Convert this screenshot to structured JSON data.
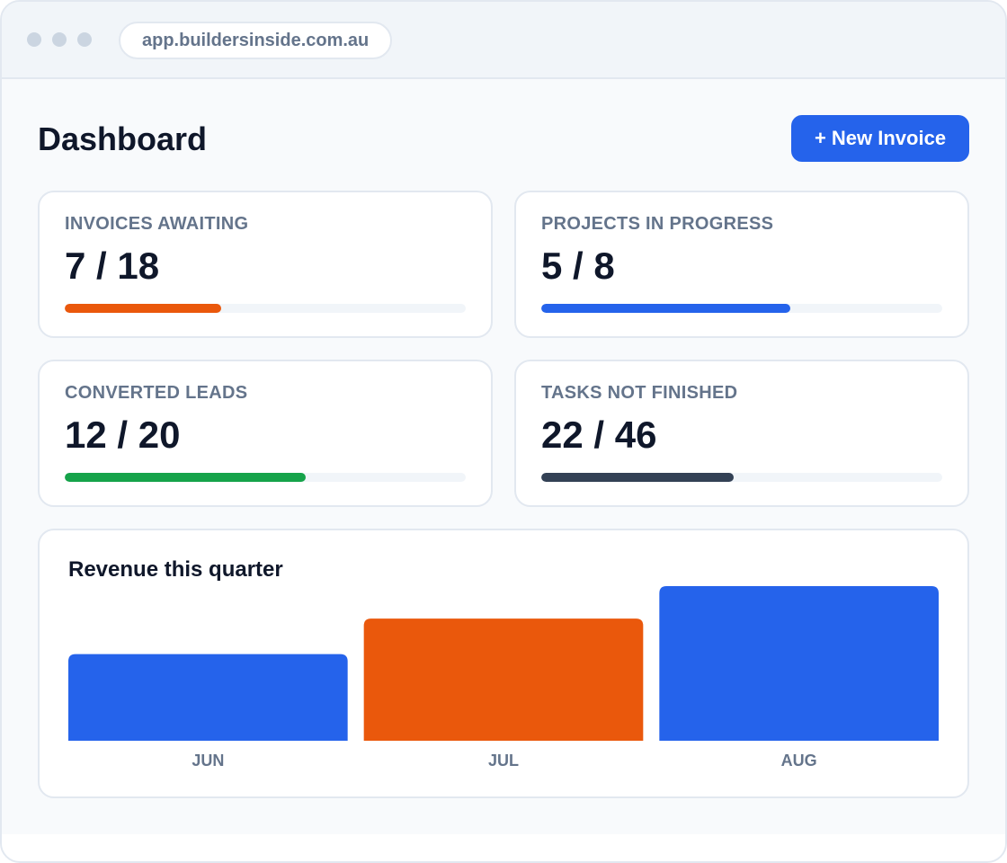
{
  "browser": {
    "url": "app.buildersinside.com.au"
  },
  "header": {
    "title": "Dashboard",
    "new_invoice_label": "+ New Invoice"
  },
  "stats": [
    {
      "label": "INVOICES AWAITING",
      "value": "7 / 18",
      "progress": 0.39,
      "color": "#ea580c"
    },
    {
      "label": "PROJECTS IN PROGRESS",
      "value": "5 / 8",
      "progress": 0.62,
      "color": "#2563eb"
    },
    {
      "label": "CONVERTED LEADS",
      "value": "12 / 20",
      "progress": 0.6,
      "color": "#16a34a"
    },
    {
      "label": "TASKS NOT FINISHED",
      "value": "22 / 46",
      "progress": 0.48,
      "color": "#334155"
    }
  ],
  "revenue": {
    "title": "Revenue this quarter",
    "chart_data": {
      "type": "bar",
      "title": "Revenue this quarter",
      "categories": [
        "JUN",
        "JUL",
        "AUG"
      ],
      "values": [
        56,
        79,
        100
      ],
      "ylim": [
        0,
        100
      ],
      "colors": [
        "#2563eb",
        "#ea580c",
        "#2563eb"
      ],
      "grid": false
    }
  }
}
